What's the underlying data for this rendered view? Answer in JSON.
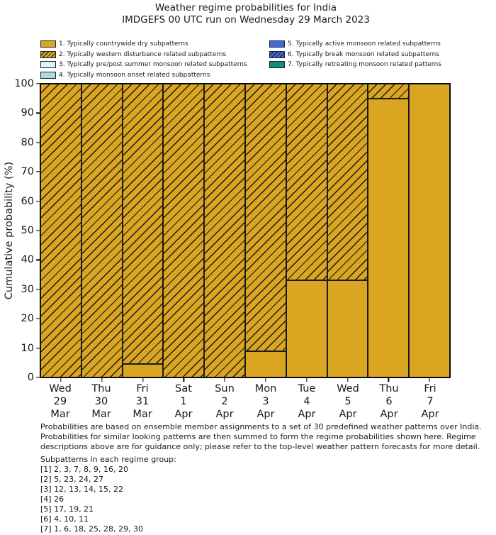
{
  "title": "Weather regime probabilities for India",
  "subtitle": "IMDGEFS 00 UTC run on Wednesday 29 March 2023",
  "colors": {
    "dry_gold": "#DAA520",
    "pale_cyan": "#E0F6F6",
    "light_blue": "#ADD8E6",
    "royal_blue": "#4169E1",
    "teal": "#0F8C84",
    "bar_edge": "#1a1a1a"
  },
  "legend": {
    "column_split": 4
  },
  "chart_data": {
    "type": "bar",
    "stacked": true,
    "title": "Weather regime probabilities for India",
    "subtitle": "IMDGEFS 00 UTC run on Wednesday 29 March 2023",
    "xlabel": "",
    "ylabel": "Cumulative probability (%)",
    "ylim": [
      0,
      100
    ],
    "yticks": [
      0,
      10,
      20,
      30,
      40,
      50,
      60,
      70,
      80,
      90,
      100
    ],
    "grid": false,
    "legend_position": "top",
    "categories": [
      {
        "day": "Wed",
        "date": "29",
        "month": "Mar"
      },
      {
        "day": "Thu",
        "date": "30",
        "month": "Mar"
      },
      {
        "day": "Fri",
        "date": "31",
        "month": "Mar"
      },
      {
        "day": "Sat",
        "date": "1",
        "month": "Apr"
      },
      {
        "day": "Sun",
        "date": "2",
        "month": "Apr"
      },
      {
        "day": "Mon",
        "date": "3",
        "month": "Apr"
      },
      {
        "day": "Tue",
        "date": "4",
        "month": "Apr"
      },
      {
        "day": "Wed",
        "date": "5",
        "month": "Apr"
      },
      {
        "day": "Thu",
        "date": "6",
        "month": "Apr"
      },
      {
        "day": "Fri",
        "date": "7",
        "month": "Apr"
      }
    ],
    "series": [
      {
        "name": "1. Typically countrywide dry subpatterns",
        "color": "#DAA520",
        "hatch": false,
        "values": [
          0,
          0,
          4.5,
          0,
          0,
          9,
          33,
          33,
          95,
          100
        ]
      },
      {
        "name": "2. Typically western disturbance related subpatterns",
        "color": "#DAA520",
        "hatch": true,
        "values": [
          100,
          100,
          95.5,
          100,
          100,
          91,
          67,
          67,
          5,
          0
        ]
      },
      {
        "name": "3. Typically pre/post summer monsoon related subpatterns",
        "color": "#E0F6F6",
        "hatch": false,
        "values": [
          0,
          0,
          0,
          0,
          0,
          0,
          0,
          0,
          0,
          0
        ]
      },
      {
        "name": "4. Typically monsoon onset related subpatterns",
        "color": "#ADD8E6",
        "hatch": false,
        "values": [
          0,
          0,
          0,
          0,
          0,
          0,
          0,
          0,
          0,
          0
        ]
      },
      {
        "name": "5. Typically active monsoon related subpatterns",
        "color": "#4169E1",
        "hatch": false,
        "values": [
          0,
          0,
          0,
          0,
          0,
          0,
          0,
          0,
          0,
          0
        ]
      },
      {
        "name": "6. Typically break monsoon related subpatterns",
        "color": "#4169E1",
        "hatch": true,
        "values": [
          0,
          0,
          0,
          0,
          0,
          0,
          0,
          0,
          0,
          0
        ]
      },
      {
        "name": "7. Typically retreating monsoon related patterns",
        "color": "#0F8C84",
        "hatch": false,
        "values": [
          0,
          0,
          0,
          0,
          0,
          0,
          0,
          0,
          0,
          0
        ]
      }
    ]
  },
  "footer": {
    "note_lines": [
      "Probabilities are based on ensemble member assignments to a set of 30 predefined weather patterns over India.",
      "Probabilities for similar looking patterns are then summed to form the regime probabilities shown here. Regime",
      "descriptions above are for guidance only; please refer to the top-level weather pattern forecasts for more detail."
    ],
    "subpatterns_title": "Subpatterns in each regime group:",
    "subpatterns": [
      "[1] 2, 3, 7, 8, 9, 16, 20",
      "[2] 5, 23, 24, 27",
      "[3] 12, 13, 14, 15, 22",
      "[4] 26",
      "[5] 17, 19, 21",
      "[6] 4, 10, 11",
      "[7] 1, 6, 18, 25, 28, 29, 30"
    ]
  }
}
